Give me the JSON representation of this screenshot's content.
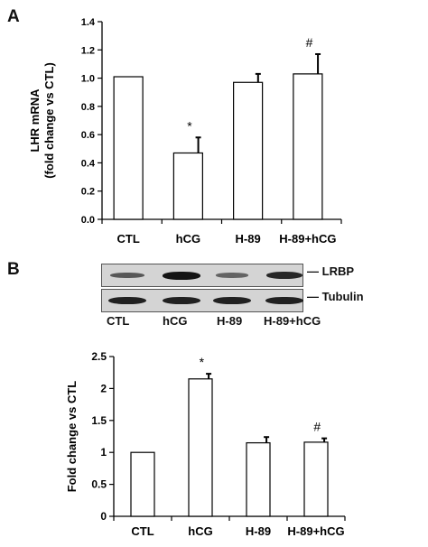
{
  "figure": {
    "panel_a_letter": "A",
    "panel_b_letter": "B"
  },
  "chart_data": [
    {
      "type": "bar",
      "panel": "A",
      "title": "",
      "ylabel_line1": "LHR mRNA",
      "ylabel_line2": "(fold change vs CTL)",
      "xlabel": "",
      "categories": [
        "CTL",
        "hCG",
        "H-89",
        "H-89+hCG"
      ],
      "values": [
        1.01,
        0.47,
        0.97,
        1.03
      ],
      "errors": [
        0.0,
        0.11,
        0.06,
        0.14
      ],
      "annotations": [
        "",
        "*",
        "",
        "#"
      ],
      "ylim": [
        0,
        1.4
      ],
      "yticks": [
        0.0,
        0.2,
        0.4,
        0.6,
        0.8,
        1.0,
        1.2,
        1.4
      ],
      "ytick_labels": [
        "0.0",
        "0.2",
        "0.4",
        "0.6",
        "0.8",
        "1.0",
        "1.2",
        "1.4"
      ],
      "grid": false,
      "bar_fill": "#ffffff",
      "bar_stroke": "#000000"
    },
    {
      "type": "bar",
      "panel": "B",
      "title": "",
      "ylabel_line1": "Fold change vs CTL",
      "xlabel": "",
      "categories": [
        "CTL",
        "hCG",
        "H-89",
        "H-89+hCG"
      ],
      "values": [
        1.0,
        2.15,
        1.15,
        1.16
      ],
      "errors": [
        0.0,
        0.08,
        0.09,
        0.06
      ],
      "annotations": [
        "",
        "*",
        "",
        "#"
      ],
      "ylim": [
        0,
        2.5
      ],
      "yticks": [
        0,
        0.5,
        1,
        1.5,
        2,
        2.5
      ],
      "ytick_labels": [
        "0",
        "0.5",
        "1",
        "1.5",
        "2",
        "2.5"
      ],
      "grid": false,
      "bar_fill": "#ffffff",
      "bar_stroke": "#000000"
    }
  ],
  "blot": {
    "rows": [
      {
        "label": "LRBP",
        "intensities": [
          0.45,
          1.0,
          0.35,
          0.85
        ]
      },
      {
        "label": "Tubulin",
        "intensities": [
          0.9,
          0.9,
          0.9,
          0.9
        ]
      }
    ],
    "lanes": [
      "CTL",
      "hCG",
      "H-89",
      "H-89+hCG"
    ]
  }
}
